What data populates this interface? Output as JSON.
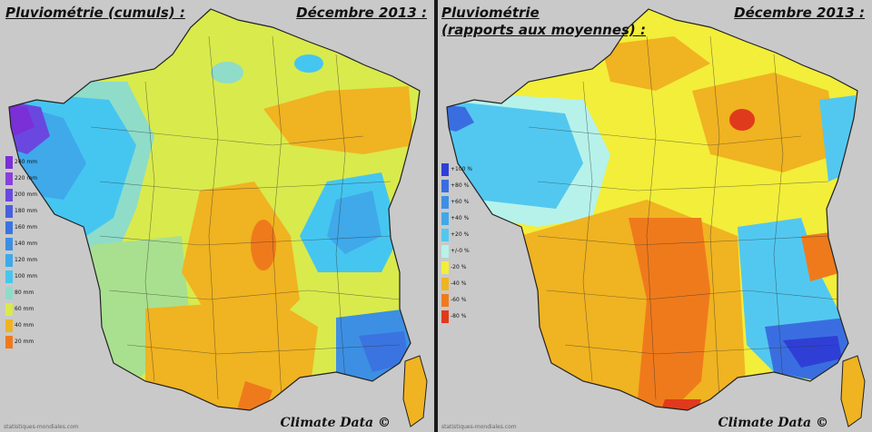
{
  "left_panel": {
    "title": "Pluviométrie (cumuls) :",
    "date": "Décembre 2013 :",
    "credit": "Climate Data ©",
    "site": "statistiques-mondiales.com",
    "legend": [
      {
        "label": "240 mm",
        "color": "#7b2fd6"
      },
      {
        "label": "220 mm",
        "color": "#8a3ee0"
      },
      {
        "label": "200 mm",
        "color": "#6a48e0"
      },
      {
        "label": "180 mm",
        "color": "#4c5ee0"
      },
      {
        "label": "160 mm",
        "color": "#3a74e0"
      },
      {
        "label": "140 mm",
        "color": "#3d8fe3"
      },
      {
        "label": "120 mm",
        "color": "#3fa9ea"
      },
      {
        "label": "100 mm",
        "color": "#45c6f0"
      },
      {
        "label": "80 mm",
        "color": "#8fdcc9"
      },
      {
        "label": "60 mm",
        "color": "#d9ea4c"
      },
      {
        "label": "40 mm",
        "color": "#f0b321"
      },
      {
        "label": "20 mm",
        "color": "#ef7a1c"
      }
    ]
  },
  "right_panel": {
    "title_line1": "Pluviométrie",
    "title_line2": "(rapports aux moyennes) :",
    "date": "Décembre 2013 :",
    "credit": "Climate Data ©",
    "site": "statistiques-mondiales.com",
    "legend": [
      {
        "label": "+100 %",
        "color": "#2f3fd6"
      },
      {
        "label": "+80 %",
        "color": "#3a6ee0"
      },
      {
        "label": "+60 %",
        "color": "#3d8fe3"
      },
      {
        "label": "+40 %",
        "color": "#40a8ea"
      },
      {
        "label": "+20 %",
        "color": "#52c8f0"
      },
      {
        "label": "+/-0 %",
        "color": "#b6f2ea"
      },
      {
        "label": "-20 %",
        "color": "#f2ee3a"
      },
      {
        "label": "-40 %",
        "color": "#f0b321"
      },
      {
        "label": "-60 %",
        "color": "#ef7a1c"
      },
      {
        "label": "-80 %",
        "color": "#e03a1c"
      }
    ]
  },
  "colors": {
    "background": "#c9c9c9",
    "divider": "#1a1a1a"
  }
}
